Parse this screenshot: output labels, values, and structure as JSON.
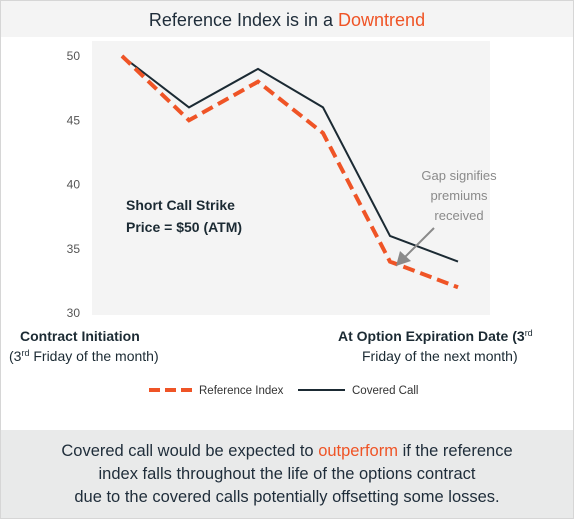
{
  "title": {
    "prefix": "Reference Index is in a ",
    "highlight": "Downtrend"
  },
  "chart_data": {
    "type": "line",
    "x": [
      0,
      1,
      2,
      3,
      4,
      5
    ],
    "series": [
      {
        "name": "Reference Index",
        "values": [
          50,
          45,
          48,
          44,
          34,
          32
        ],
        "color": "#ef5426",
        "style": "dashed"
      },
      {
        "name": "Covered Call",
        "values": [
          50,
          46,
          49,
          46,
          36,
          34
        ],
        "color": "#1b2a33",
        "style": "solid"
      }
    ],
    "ylim": [
      30,
      50
    ],
    "yticks": [
      "50",
      "45",
      "40",
      "35",
      "30"
    ],
    "grid": false,
    "legend": "bottom"
  },
  "annotations": {
    "strike_line1": "Short Call Strike",
    "strike_line2": "Price = $50 (ATM)",
    "gap_line1": "Gap signifies",
    "gap_line2": "premiums",
    "gap_line3": "received"
  },
  "x_labels": {
    "start_bold": "Contract Initiation",
    "start_sub_pre": "(3",
    "start_sub_sup": "rd",
    "start_sub_post": " Friday of the month)",
    "end_bold": "At Option Expiration Date",
    "end_bold_tail_pre": " (3",
    "end_bold_tail_sup": "rd",
    "end_sub": "Friday of the next month)"
  },
  "footer": {
    "line1_pre": "Covered call would be expected to ",
    "line1_hl": "outperform",
    "line1_post": " if the reference",
    "line2": "index falls throughout the life of the options contract",
    "line3": "due to the covered calls potentially offsetting some losses."
  },
  "colors": {
    "accent": "#ef5426",
    "dark": "#1b2a33"
  }
}
